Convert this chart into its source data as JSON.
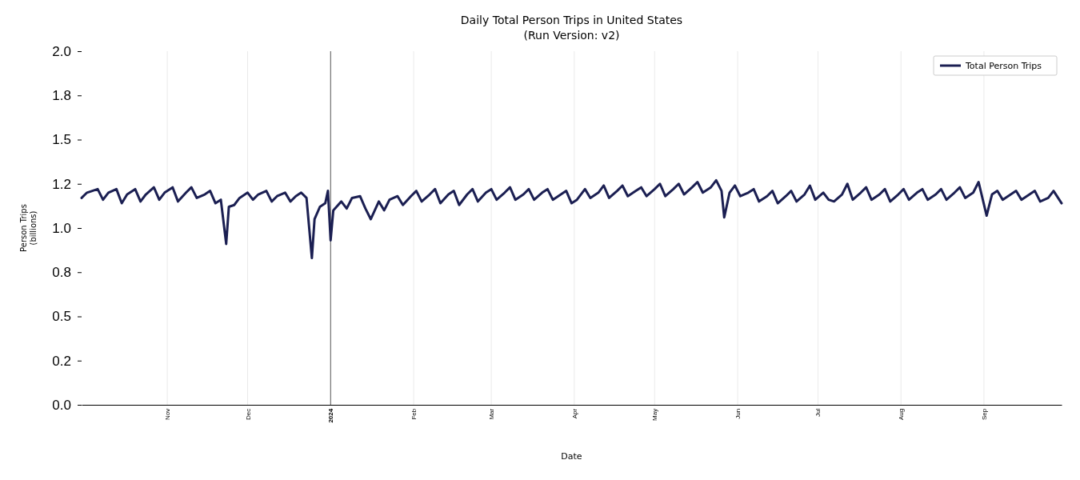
{
  "chart_data": {
    "type": "line",
    "title": "Daily Total Person Trips in United States\n(Run Version: v2)",
    "xlabel": "Date",
    "ylabel": "Person Trips\n(billions)",
    "xlim": [
      "2023-09-30",
      "2024-09-30"
    ],
    "xticks": [
      {
        "value": "2023-11-01",
        "label": "Nov"
      },
      {
        "value": "2023-12-01",
        "label": "Dec"
      },
      {
        "value": "2024-01-01",
        "label": "2024"
      },
      {
        "value": "2024-02-01",
        "label": "Feb"
      },
      {
        "value": "2024-03-01",
        "label": "Mar"
      },
      {
        "value": "2024-04-01",
        "label": "Apr"
      },
      {
        "value": "2024-05-01",
        "label": "May"
      },
      {
        "value": "2024-06-01",
        "label": "Jun"
      },
      {
        "value": "2024-07-01",
        "label": "Jul"
      },
      {
        "value": "2024-08-01",
        "label": "Aug"
      },
      {
        "value": "2024-09-01",
        "label": "Sep"
      }
    ],
    "ylim": [
      0,
      2
    ],
    "yticks": [
      {
        "value": 0,
        "label": "0.0"
      },
      {
        "value": 0.25,
        "label": "0.2"
      },
      {
        "value": 0.5,
        "label": "0.5"
      },
      {
        "value": 0.75,
        "label": "0.8"
      },
      {
        "value": 1,
        "label": "1.0"
      },
      {
        "value": 1.25,
        "label": "1.2"
      },
      {
        "value": 1.5,
        "label": "1.5"
      },
      {
        "value": 1.75,
        "label": "1.8"
      },
      {
        "value": 2,
        "label": "2.0"
      }
    ],
    "grid": "x",
    "legend": "top right",
    "marker": "none",
    "line_style": "solid",
    "ref_lines": [
      {
        "axis": "x",
        "value": "2024-01-01",
        "color": "#333333"
      }
    ],
    "x": [
      "2023-09-30",
      "2023-10-02",
      "2023-10-04",
      "2023-10-06",
      "2023-10-08",
      "2023-10-10",
      "2023-10-13",
      "2023-10-15",
      "2023-10-17",
      "2023-10-20",
      "2023-10-22",
      "2023-10-24",
      "2023-10-27",
      "2023-10-29",
      "2023-10-31",
      "2023-11-03",
      "2023-11-05",
      "2023-11-08",
      "2023-11-10",
      "2023-11-12",
      "2023-11-15",
      "2023-11-17",
      "2023-11-19",
      "2023-11-21",
      "2023-11-23",
      "2023-11-24",
      "2023-11-26",
      "2023-11-28",
      "2023-12-01",
      "2023-12-03",
      "2023-12-05",
      "2023-12-08",
      "2023-12-10",
      "2023-12-12",
      "2023-12-15",
      "2023-12-17",
      "2023-12-19",
      "2023-12-21",
      "2023-12-23",
      "2023-12-25",
      "2023-12-26",
      "2023-12-28",
      "2023-12-30",
      "2023-12-31",
      "2024-01-01",
      "2024-01-02",
      "2024-01-05",
      "2024-01-07",
      "2024-01-09",
      "2024-01-12",
      "2024-01-14",
      "2024-01-16",
      "2024-01-19",
      "2024-01-21",
      "2024-01-23",
      "2024-01-26",
      "2024-01-28",
      "2024-01-31",
      "2024-02-02",
      "2024-02-04",
      "2024-02-07",
      "2024-02-09",
      "2024-02-11",
      "2024-02-14",
      "2024-02-16",
      "2024-02-18",
      "2024-02-21",
      "2024-02-23",
      "2024-02-25",
      "2024-02-28",
      "2024-03-01",
      "2024-03-03",
      "2024-03-06",
      "2024-03-08",
      "2024-03-10",
      "2024-03-13",
      "2024-03-15",
      "2024-03-17",
      "2024-03-20",
      "2024-03-22",
      "2024-03-24",
      "2024-03-27",
      "2024-03-29",
      "2024-03-31",
      "2024-04-02",
      "2024-04-05",
      "2024-04-07",
      "2024-04-10",
      "2024-04-12",
      "2024-04-14",
      "2024-04-17",
      "2024-04-19",
      "2024-04-21",
      "2024-04-24",
      "2024-04-26",
      "2024-04-28",
      "2024-05-01",
      "2024-05-03",
      "2024-05-05",
      "2024-05-08",
      "2024-05-10",
      "2024-05-12",
      "2024-05-15",
      "2024-05-17",
      "2024-05-19",
      "2024-05-22",
      "2024-05-24",
      "2024-05-26",
      "2024-05-27",
      "2024-05-29",
      "2024-05-31",
      "2024-06-02",
      "2024-06-05",
      "2024-06-07",
      "2024-06-09",
      "2024-06-12",
      "2024-06-14",
      "2024-06-16",
      "2024-06-19",
      "2024-06-21",
      "2024-06-23",
      "2024-06-26",
      "2024-06-28",
      "2024-06-30",
      "2024-07-03",
      "2024-07-05",
      "2024-07-07",
      "2024-07-10",
      "2024-07-12",
      "2024-07-14",
      "2024-07-17",
      "2024-07-19",
      "2024-07-21",
      "2024-07-24",
      "2024-07-26",
      "2024-07-28",
      "2024-07-31",
      "2024-08-02",
      "2024-08-04",
      "2024-08-07",
      "2024-08-09",
      "2024-08-11",
      "2024-08-14",
      "2024-08-16",
      "2024-08-18",
      "2024-08-21",
      "2024-08-23",
      "2024-08-25",
      "2024-08-28",
      "2024-08-30",
      "2024-09-02",
      "2024-09-04",
      "2024-09-06",
      "2024-09-08",
      "2024-09-11",
      "2024-09-13",
      "2024-09-15",
      "2024-09-18",
      "2024-09-20",
      "2024-09-22",
      "2024-09-25",
      "2024-09-27",
      "2024-09-30"
    ],
    "series": [
      {
        "name": "Total Person Trips",
        "color": "#1b1f52",
        "values": [
          1.17,
          1.2,
          1.21,
          1.22,
          1.16,
          1.2,
          1.22,
          1.14,
          1.19,
          1.22,
          1.15,
          1.19,
          1.23,
          1.16,
          1.2,
          1.23,
          1.15,
          1.2,
          1.23,
          1.17,
          1.19,
          1.21,
          1.14,
          1.16,
          0.91,
          1.12,
          1.13,
          1.17,
          1.2,
          1.16,
          1.19,
          1.21,
          1.15,
          1.18,
          1.2,
          1.15,
          1.18,
          1.2,
          1.17,
          0.83,
          1.05,
          1.12,
          1.14,
          1.21,
          0.93,
          1.1,
          1.15,
          1.11,
          1.17,
          1.18,
          1.11,
          1.05,
          1.15,
          1.1,
          1.16,
          1.18,
          1.13,
          1.18,
          1.21,
          1.15,
          1.19,
          1.22,
          1.14,
          1.19,
          1.21,
          1.13,
          1.19,
          1.22,
          1.15,
          1.2,
          1.22,
          1.16,
          1.2,
          1.23,
          1.16,
          1.19,
          1.22,
          1.16,
          1.2,
          1.22,
          1.16,
          1.19,
          1.21,
          1.14,
          1.16,
          1.22,
          1.17,
          1.2,
          1.24,
          1.17,
          1.21,
          1.24,
          1.18,
          1.21,
          1.23,
          1.18,
          1.22,
          1.25,
          1.18,
          1.22,
          1.25,
          1.19,
          1.23,
          1.26,
          1.2,
          1.23,
          1.27,
          1.21,
          1.06,
          1.2,
          1.24,
          1.18,
          1.2,
          1.22,
          1.15,
          1.18,
          1.21,
          1.14,
          1.18,
          1.21,
          1.15,
          1.19,
          1.24,
          1.16,
          1.2,
          1.16,
          1.15,
          1.19,
          1.25,
          1.16,
          1.2,
          1.23,
          1.16,
          1.19,
          1.22,
          1.15,
          1.19,
          1.22,
          1.16,
          1.2,
          1.22,
          1.16,
          1.19,
          1.22,
          1.16,
          1.2,
          1.23,
          1.17,
          1.2,
          1.26,
          1.07,
          1.19,
          1.21,
          1.16,
          1.19,
          1.21,
          1.16,
          1.19,
          1.21,
          1.15,
          1.17,
          1.21,
          1.14
        ]
      }
    ]
  }
}
